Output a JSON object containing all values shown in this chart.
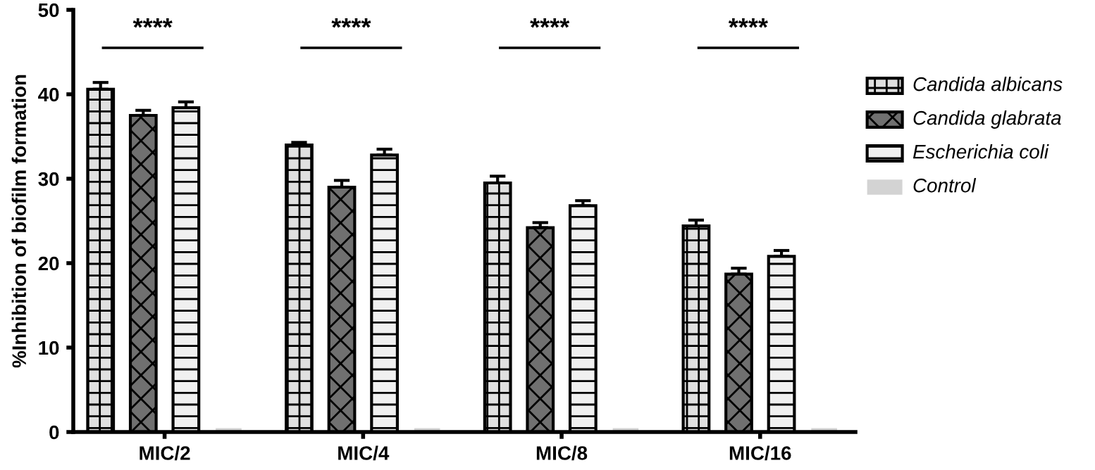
{
  "chart_data": {
    "type": "bar",
    "ylabel": "%Inhibition of biofilm formation",
    "categories": [
      "MIC/2",
      "MIC/4",
      "MIC/8",
      "MIC/16"
    ],
    "series": [
      {
        "name": "Candida albicans",
        "color": "#e0e0e0",
        "values": [
          40.6,
          34.0,
          29.5,
          24.4
        ],
        "errors": [
          0.8,
          0.3,
          0.8,
          0.7
        ]
      },
      {
        "name": "Candida glabrata",
        "color": "#707070",
        "values": [
          37.5,
          29.0,
          24.2,
          18.7
        ],
        "errors": [
          0.6,
          0.8,
          0.6,
          0.7
        ]
      },
      {
        "name": "Escherichia coli",
        "color": "#f0f0f0",
        "values": [
          38.4,
          32.8,
          26.8,
          20.8
        ],
        "errors": [
          0.7,
          0.7,
          0.6,
          0.7
        ]
      },
      {
        "name": "Control",
        "color": "#d3d3d3",
        "values": [
          0,
          0,
          0,
          0
        ]
      }
    ],
    "ylim": [
      0,
      50
    ],
    "yticks": [
      0,
      10,
      20,
      30,
      40,
      50
    ],
    "grid": false,
    "legend": "right",
    "annotations": [
      "****",
      "****",
      "****",
      "****"
    ]
  }
}
